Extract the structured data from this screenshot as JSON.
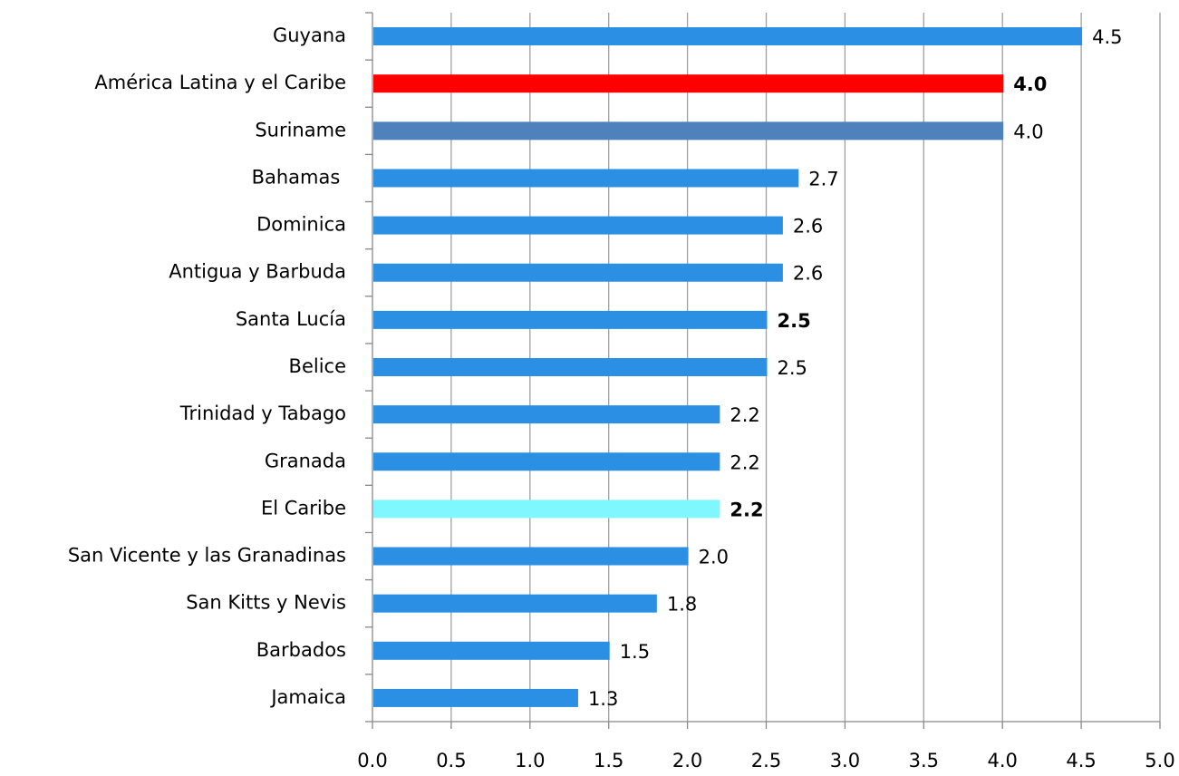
{
  "chart_data": {
    "type": "hbar",
    "categories": [
      "Guyana",
      "América Latina y el Caribe",
      "Suriname",
      "Bahamas ",
      "Dominica",
      "Antigua y Barbuda",
      "Santa Lucía",
      "Belice",
      "Trinidad y Tabago",
      "Granada",
      "El Caribe",
      "San Vicente y las Granadinas",
      "San Kitts y Nevis",
      "Barbados",
      "Jamaica"
    ],
    "values": [
      4.5,
      4.0,
      4.0,
      2.7,
      2.6,
      2.6,
      2.5,
      2.5,
      2.2,
      2.2,
      2.2,
      2.0,
      1.8,
      1.5,
      1.3
    ],
    "value_labels": [
      "4.5",
      "4.0",
      "4.0",
      "2.7",
      "2.6",
      "2.6",
      "2.5",
      "2.5",
      "2.2",
      "2.2",
      "2.2",
      "2.0",
      "1.8",
      "1.5",
      "1.3"
    ],
    "colors": [
      "#2b8fe3",
      "#ff0000",
      "#4f81bd",
      "#2b8fe3",
      "#2b8fe3",
      "#2b8fe3",
      "#2b8fe3",
      "#2b8fe3",
      "#2b8fe3",
      "#2b8fe3",
      "#7ff7ff",
      "#2b8fe3",
      "#2b8fe3",
      "#2b8fe3",
      "#2b8fe3"
    ],
    "value_label_bold": [
      false,
      true,
      false,
      false,
      false,
      false,
      true,
      false,
      false,
      false,
      true,
      false,
      false,
      false,
      false
    ],
    "xlim": [
      0,
      5
    ],
    "xticks": [
      {
        "value": 0,
        "label": "0.0"
      },
      0.5,
      {
        "value": 1,
        "label": "1.0"
      },
      1.5,
      {
        "value": 2,
        "label": "2.0"
      },
      2.5,
      {
        "value": 3,
        "label": "3.0"
      },
      3.5,
      {
        "value": 4,
        "label": "4.0"
      },
      4.5,
      {
        "value": 5,
        "label": "5.0"
      }
    ],
    "grid": true
  }
}
